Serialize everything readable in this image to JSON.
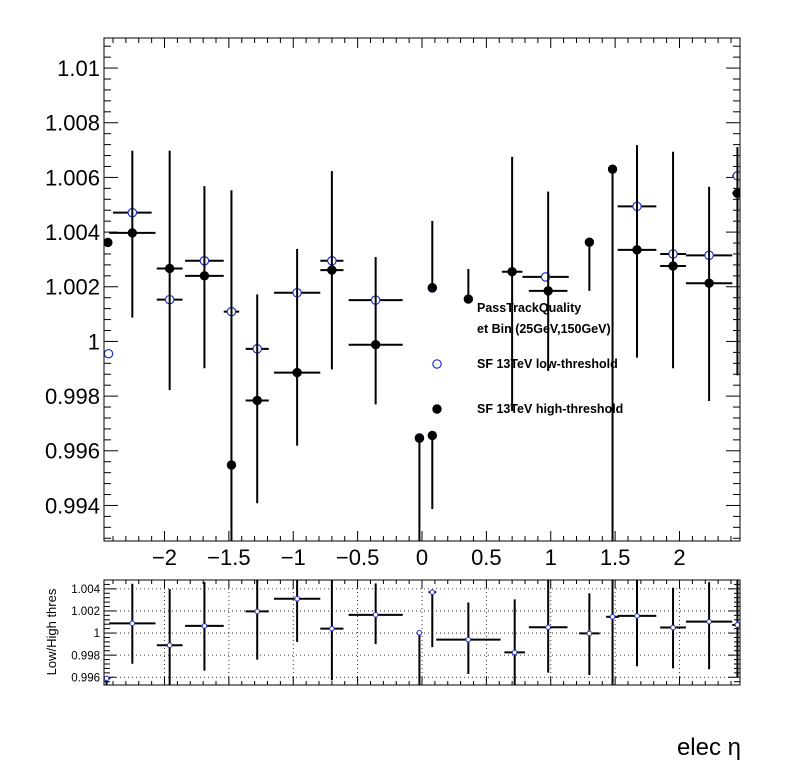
{
  "chart_data": [
    {
      "type": "scatter",
      "xlim": [
        -2.47,
        2.47
      ],
      "ylim": [
        0.9927,
        1.0111
      ],
      "yticks": [
        0.994,
        0.996,
        0.998,
        1,
        1.002,
        1.004,
        1.006,
        1.008,
        1.01
      ],
      "yticklabels": [
        "0.994",
        "0.996",
        "0.998",
        "1",
        "1.002",
        "1.004",
        "1.006",
        "1.008",
        "1.01"
      ],
      "xticks": [
        -2,
        -1.5,
        -1,
        -0.5,
        0,
        0.5,
        1,
        1.5,
        2
      ],
      "xticklabels": [
        "−2",
        "−1.5",
        "−1",
        "−0.5",
        "0",
        "0.5",
        "1",
        "1.5",
        "2"
      ],
      "annotations": [
        "PassTrackQuality",
        "et Bin (25GeV,150GeV)"
      ],
      "legend": {
        "placement": "center-right",
        "entries": [
          "SF 13TeV low-threshold",
          "SF 13TeV high-threshold"
        ]
      },
      "grid": false,
      "series": [
        {
          "name": "SF 13TeV low-threshold",
          "marker": "open-circle",
          "color": "#2233cc",
          "points": [
            {
              "x": -2.435,
              "xerr": 0.035,
              "y": 0.99955,
              "ylo": 0.99955,
              "yhi": 0.99955
            },
            {
              "x": -2.25,
              "xerr": 0.15,
              "y": 1.00471,
              "ylo": 1.00471,
              "yhi": 1.00471
            },
            {
              "x": -1.96,
              "xerr": 0.1,
              "y": 1.00153,
              "ylo": 1.00153,
              "yhi": 1.00153
            },
            {
              "x": -1.69,
              "xerr": 0.15,
              "y": 1.00295,
              "ylo": 1.00295,
              "yhi": 1.00295
            },
            {
              "x": -1.48,
              "xerr": 0.06,
              "y": 1.00109,
              "ylo": 1.00109,
              "yhi": 1.00109
            },
            {
              "x": -1.28,
              "xerr": 0.09,
              "y": 0.99973,
              "ylo": 0.99973,
              "yhi": 0.99973
            },
            {
              "x": -0.97,
              "xerr": 0.18,
              "y": 1.00178,
              "ylo": 1.00178,
              "yhi": 1.00178
            },
            {
              "x": -0.7,
              "xerr": 0.09,
              "y": 1.00295,
              "ylo": 1.00295,
              "yhi": 1.00295
            },
            {
              "x": -0.36,
              "xerr": 0.21,
              "y": 1.00151,
              "ylo": 1.00151,
              "yhi": 1.00151
            },
            {
              "x": -0.02,
              "xerr": 0.02,
              "y": 0.99647,
              "ylo": 0.99647,
              "yhi": 0.99647
            },
            {
              "x": 0.08,
              "xerr": 0.03,
              "y": 1.00196,
              "ylo": 1.00196,
              "yhi": 1.00196
            },
            {
              "x": 0.96,
              "xerr": 0.18,
              "y": 1.00236,
              "ylo": 1.00236,
              "yhi": 1.00236
            },
            {
              "x": 1.67,
              "xerr": 0.15,
              "y": 1.00494,
              "ylo": 1.00494,
              "yhi": 1.00494
            },
            {
              "x": 1.95,
              "xerr": 0.1,
              "y": 1.0032,
              "ylo": 1.0032,
              "yhi": 1.0032
            },
            {
              "x": 2.23,
              "xerr": 0.18,
              "y": 1.00315,
              "ylo": 1.00315,
              "yhi": 1.00315
            },
            {
              "x": 2.45,
              "xerr": 0.04,
              "y": 1.00606,
              "ylo": 1.00606,
              "yhi": 1.00606
            }
          ]
        },
        {
          "name": "SF 13TeV high-threshold",
          "marker": "filled-circle",
          "color": "#000000",
          "points": [
            {
              "x": -2.44,
              "xerr": 0.03,
              "y": 1.00362,
              "ylo": 1.00362,
              "yhi": 1.00362
            },
            {
              "x": -2.25,
              "xerr": 0.18,
              "y": 1.00397,
              "ylo": 1.00087,
              "yhi": 1.00698
            },
            {
              "x": -1.96,
              "xerr": 0.1,
              "y": 1.00267,
              "ylo": 0.99822,
              "yhi": 1.00698
            },
            {
              "x": -1.69,
              "xerr": 0.15,
              "y": 1.0024,
              "ylo": 0.99902,
              "yhi": 1.00568
            },
            {
              "x": -1.48,
              "xerr": 0.01,
              "y": 0.99548,
              "ylo": 0.9927,
              "yhi": 1.00553
            },
            {
              "x": -1.28,
              "xerr": 0.09,
              "y": 0.99784,
              "ylo": 0.99408,
              "yhi": 1.00172
            },
            {
              "x": -0.97,
              "xerr": 0.18,
              "y": 0.99886,
              "ylo": 0.99619,
              "yhi": 1.00338
            },
            {
              "x": -0.7,
              "xerr": 0.09,
              "y": 1.00261,
              "ylo": 0.99898,
              "yhi": 1.00623
            },
            {
              "x": -0.36,
              "xerr": 0.21,
              "y": 0.99988,
              "ylo": 0.9977,
              "yhi": 1.00309
            },
            {
              "x": -0.02,
              "xerr": 0.02,
              "y": 0.99646,
              "ylo": 0.9927,
              "yhi": 0.99648
            },
            {
              "x": 0.08,
              "xerr": 0.0,
              "y": 0.99656,
              "ylo": 0.99387,
              "yhi": 0.99656
            },
            {
              "x": 0.08,
              "xerr": 0.0,
              "y": 1.00196,
              "ylo": 1.00196,
              "yhi": 1.00441
            },
            {
              "x": 0.36,
              "xerr": 0.0,
              "y": 1.00155,
              "ylo": 1.00155,
              "yhi": 1.00265
            },
            {
              "x": 0.7,
              "xerr": 0.08,
              "y": 1.00255,
              "ylo": 0.99745,
              "yhi": 1.00675
            },
            {
              "x": 0.98,
              "xerr": 0.15,
              "y": 1.00185,
              "ylo": 0.99892,
              "yhi": 1.00548
            },
            {
              "x": 1.3,
              "xerr": 0.0,
              "y": 1.00363,
              "ylo": 1.00185,
              "yhi": 1.00363
            },
            {
              "x": 1.48,
              "xerr": 0.0,
              "y": 1.0063,
              "ylo": 0.9927,
              "yhi": 1.0063
            },
            {
              "x": 1.67,
              "xerr": 0.15,
              "y": 1.00335,
              "ylo": 0.99941,
              "yhi": 1.00718
            },
            {
              "x": 1.95,
              "xerr": 0.1,
              "y": 1.00276,
              "ylo": 0.99902,
              "yhi": 1.00694
            },
            {
              "x": 2.23,
              "xerr": 0.18,
              "y": 1.00213,
              "ylo": 0.99782,
              "yhi": 1.00566
            },
            {
              "x": 2.45,
              "xerr": 0.04,
              "y": 1.00542,
              "ylo": 0.99876,
              "yhi": 1.00711
            }
          ]
        }
      ]
    },
    {
      "type": "scatter",
      "ylabel": "Low/High thres",
      "xlabel": "elec η",
      "xlim": [
        -2.47,
        2.47
      ],
      "ylim": [
        0.9953,
        1.0048
      ],
      "yticks": [
        0.996,
        0.998,
        1,
        1.002,
        1.004
      ],
      "yticklabels": [
        "0.996",
        "0.998",
        "1",
        "1.002",
        "1.004"
      ],
      "grid": true,
      "series": [
        {
          "marker": "small-circle",
          "color": "#2233cc",
          "points": [
            {
              "x": -2.45,
              "xerr": 0.03,
              "y": 0.9959,
              "ylo": 0.9953,
              "yhi": 0.996
            },
            {
              "x": -2.25,
              "xerr": 0.18,
              "y": 1.00088,
              "ylo": 0.99722,
              "yhi": 1.00446
            },
            {
              "x": -1.96,
              "xerr": 0.1,
              "y": 0.9989,
              "ylo": 0.9953,
              "yhi": 1.00398
            },
            {
              "x": -1.69,
              "xerr": 0.15,
              "y": 1.00065,
              "ylo": 0.9966,
              "yhi": 1.00462
            },
            {
              "x": -1.28,
              "xerr": 0.09,
              "y": 1.00196,
              "ylo": 0.9976,
              "yhi": 1.0048
            },
            {
              "x": -0.97,
              "xerr": 0.18,
              "y": 1.0031,
              "ylo": 0.9992,
              "yhi": 1.0048
            },
            {
              "x": -0.7,
              "xerr": 0.09,
              "y": 1.0004,
              "ylo": 0.99573,
              "yhi": 1.0048
            },
            {
              "x": -0.36,
              "xerr": 0.21,
              "y": 1.00165,
              "ylo": 0.999,
              "yhi": 1.00449
            },
            {
              "x": -0.02,
              "xerr": 0.02,
              "y": 1.00003,
              "ylo": 0.9953,
              "yhi": 1.00003
            },
            {
              "x": 0.08,
              "xerr": 0.03,
              "y": 1.0037,
              "ylo": 0.99873,
              "yhi": 1.0037
            },
            {
              "x": 0.36,
              "xerr": 0.25,
              "y": 0.9994,
              "ylo": 0.9963,
              "yhi": 1.00276
            },
            {
              "x": 0.72,
              "xerr": 0.08,
              "y": 0.99825,
              "ylo": 0.9953,
              "yhi": 1.00305
            },
            {
              "x": 0.98,
              "xerr": 0.15,
              "y": 1.00052,
              "ylo": 0.99642,
              "yhi": 1.0048
            },
            {
              "x": 1.3,
              "xerr": 0.08,
              "y": 0.99997,
              "ylo": 0.99621,
              "yhi": 1.00359
            },
            {
              "x": 1.48,
              "xerr": 0.05,
              "y": 1.00147,
              "ylo": 0.9953,
              "yhi": 1.0048
            },
            {
              "x": 1.67,
              "xerr": 0.15,
              "y": 1.00155,
              "ylo": 0.997,
              "yhi": 1.0048
            },
            {
              "x": 1.95,
              "xerr": 0.1,
              "y": 1.0005,
              "ylo": 0.9968,
              "yhi": 1.0041
            },
            {
              "x": 2.23,
              "xerr": 0.18,
              "y": 1.00103,
              "ylo": 0.99672,
              "yhi": 1.00461
            },
            {
              "x": 2.45,
              "xerr": 0.04,
              "y": 1.00073,
              "ylo": 0.996,
              "yhi": 1.0048
            }
          ]
        }
      ]
    }
  ]
}
